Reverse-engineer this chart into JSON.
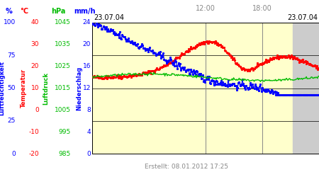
{
  "date_label_left": "23.07.04",
  "date_label_right": "23.07.04",
  "time_label_12": "12:00",
  "time_label_18": "18:00",
  "footer": "Erstellt: 08.01.2012 17:25",
  "bg_color": "#ffffcc",
  "bg_color_right": "#cccccc",
  "axis_labels": {
    "percent": "%",
    "celsius": "°C",
    "hpa": "hPa",
    "mmh": "mm/h"
  },
  "y_labels_percent": [
    0,
    25,
    50,
    75,
    100
  ],
  "y_labels_celsius": [
    -20,
    -10,
    0,
    10,
    20,
    30,
    40
  ],
  "y_labels_hpa": [
    985,
    995,
    1005,
    1015,
    1025,
    1035,
    1045
  ],
  "y_labels_mmh": [
    0,
    4,
    8,
    12,
    16,
    20,
    24
  ],
  "grid_color": "#000000",
  "vline_color": "#888888",
  "red_color": "#ff0000",
  "blue_color": "#0000ff",
  "green_color": "#00bb00",
  "footer_color": "#888888",
  "date_color": "#000000",
  "time_color": "#888888"
}
